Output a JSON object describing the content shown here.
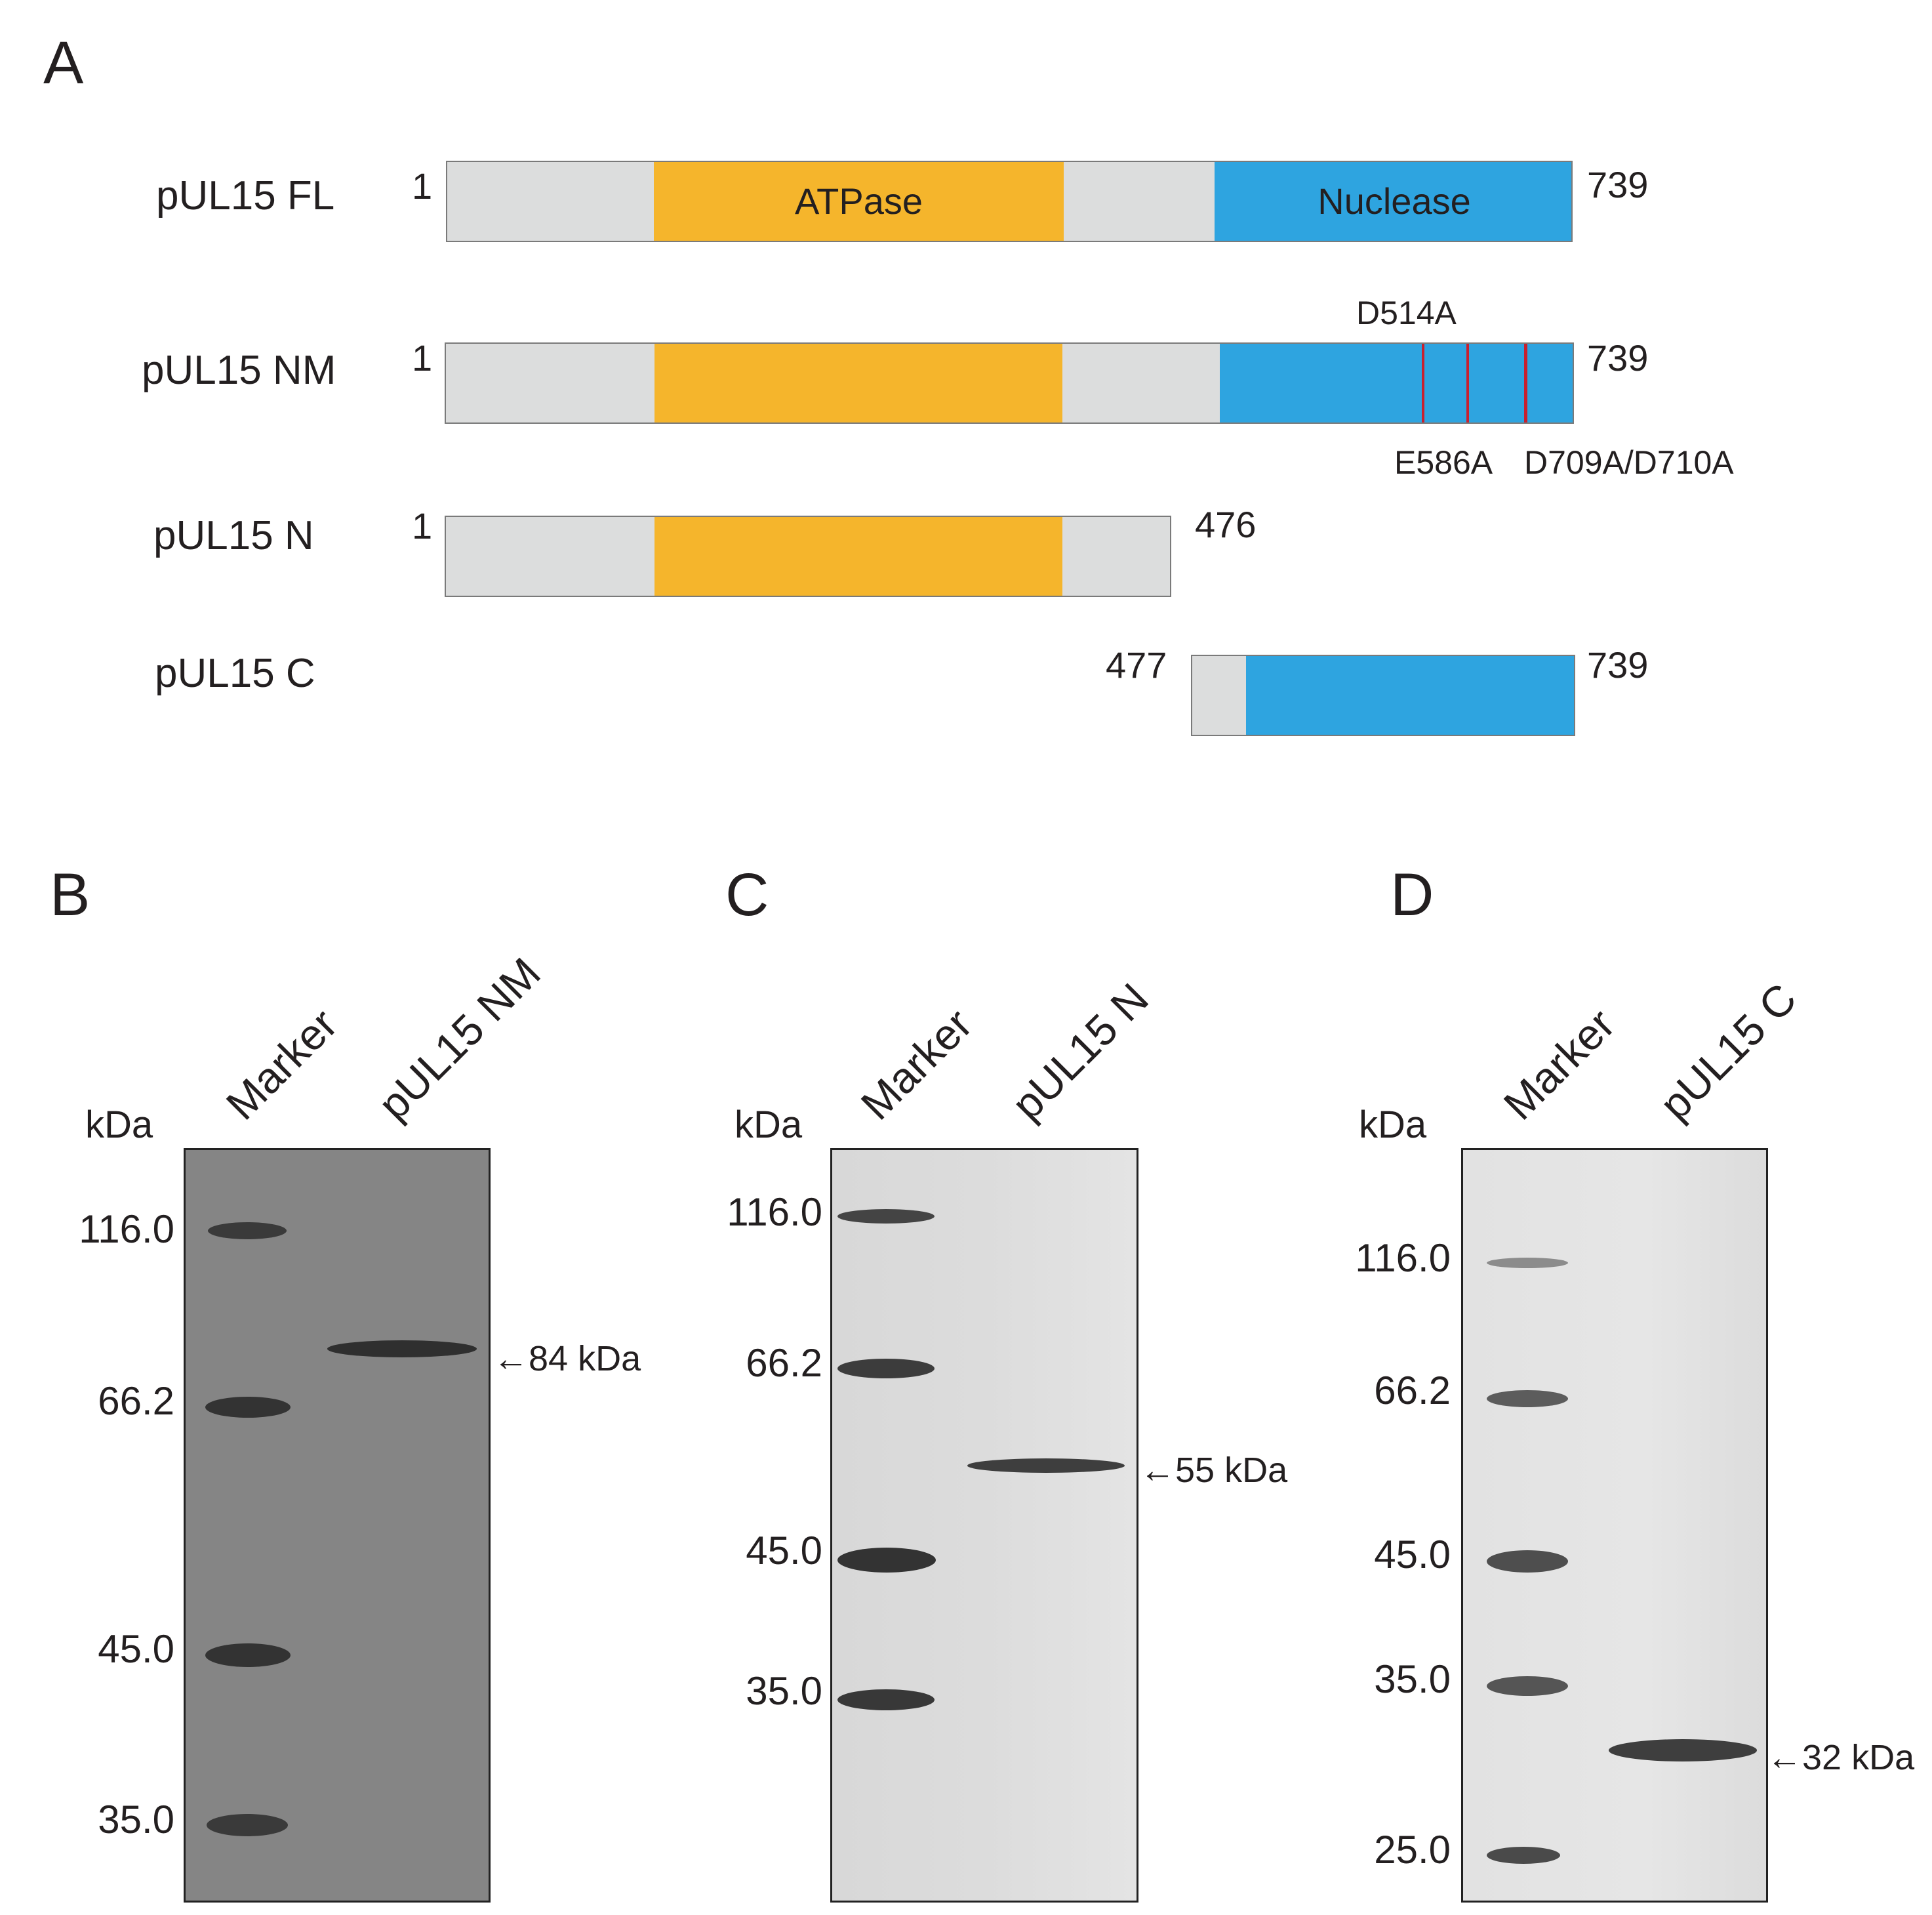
{
  "panelA": {
    "letter": "A",
    "constructs": [
      {
        "name": "pUL15 FL",
        "start_label": "1",
        "end_label": "739"
      },
      {
        "name": "pUL15 NM",
        "start_label": "1",
        "end_label": "739"
      },
      {
        "name": "pUL15 N",
        "start_label": "1",
        "end_label": "476"
      },
      {
        "name": "pUL15 C",
        "start_label": "477",
        "end_label": "739"
      }
    ],
    "domains": {
      "atpase": "ATPase",
      "nuclease": "Nuclease"
    },
    "mutations": [
      "D514A",
      "E586A",
      "D709A/D710A"
    ],
    "colors": {
      "atpase": "#f5b52c",
      "nuclease": "#2ea4e0",
      "backbone": "#dcdddd",
      "mutation": "#c8202f"
    }
  },
  "panelB": {
    "letter": "B",
    "unit": "kDa",
    "lanes": [
      "Marker",
      "pUL15 NM"
    ],
    "markers": [
      "116.0",
      "66.2",
      "45.0",
      "35.0"
    ],
    "band_label": "84 kDa"
  },
  "panelC": {
    "letter": "C",
    "unit": "kDa",
    "lanes": [
      "Marker",
      "pUL15 N"
    ],
    "markers": [
      "116.0",
      "66.2",
      "45.0",
      "35.0"
    ],
    "band_label": "55 kDa"
  },
  "panelD": {
    "letter": "D",
    "unit": "kDa",
    "lanes": [
      "Marker",
      "pUL15 C"
    ],
    "markers": [
      "116.0",
      "66.2",
      "45.0",
      "35.0",
      "25.0"
    ],
    "band_label": "32 kDa"
  }
}
